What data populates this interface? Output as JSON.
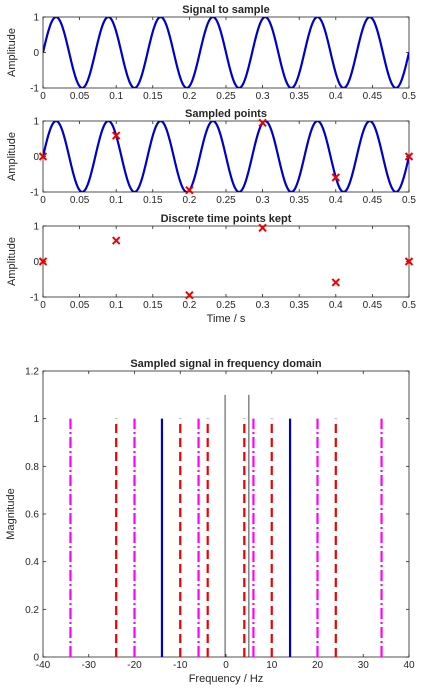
{
  "chart_data": [
    {
      "type": "line",
      "title": "Signal to sample",
      "xlabel": "",
      "ylabel": "Amplitude",
      "xlim": [
        0,
        0.5
      ],
      "ylim": [
        -1,
        1
      ],
      "xticks": [
        "0",
        "0.05",
        "0.1",
        "0.15",
        "0.2",
        "0.25",
        "0.3",
        "0.35",
        "0.4",
        "0.45",
        "0.5"
      ],
      "yticks": [
        "-1",
        "0",
        "1"
      ],
      "series": [
        {
          "frequency_hz": 14,
          "amplitude": 1,
          "color": "#0000cc"
        }
      ]
    },
    {
      "type": "line",
      "title": "Sampled points",
      "xlabel": "",
      "ylabel": "Amplitude",
      "xlim": [
        0,
        0.5
      ],
      "ylim": [
        -1,
        1
      ],
      "xticks": [
        "0",
        "0.05",
        "0.1",
        "0.15",
        "0.2",
        "0.25",
        "0.3",
        "0.35",
        "0.4",
        "0.45",
        "0.5"
      ],
      "yticks": [
        "-1",
        "0",
        "1"
      ],
      "series": [
        {
          "frequency_hz": 14,
          "amplitude": 1,
          "color": "#0000cc"
        }
      ],
      "points": {
        "x": [
          0,
          0.1,
          0.2,
          0.3,
          0.4,
          0.5
        ],
        "y": [
          0,
          0.59,
          -0.95,
          0.95,
          -0.59,
          0
        ],
        "color": "#ee0000"
      }
    },
    {
      "type": "scatter",
      "title": "Discrete time points kept",
      "xlabel": "Time / s",
      "ylabel": "Amplitude",
      "xlim": [
        0,
        0.5
      ],
      "ylim": [
        -1,
        1
      ],
      "xticks": [
        "0",
        "0.05",
        "0.1",
        "0.15",
        "0.2",
        "0.25",
        "0.3",
        "0.35",
        "0.4",
        "0.45",
        "0.5"
      ],
      "yticks": [
        "-1",
        "0",
        "1"
      ],
      "points": {
        "x": [
          0,
          0.1,
          0.2,
          0.3,
          0.4,
          0.5
        ],
        "y": [
          0,
          0.59,
          -0.95,
          0.95,
          -0.59,
          0
        ],
        "color": "#ee0000"
      }
    },
    {
      "type": "bar",
      "title": "Sampled signal in frequency domain",
      "xlabel": "Frequency / Hz",
      "ylabel": "Magnitude",
      "xlim": [
        -40,
        40
      ],
      "ylim": [
        0,
        1.2
      ],
      "xticks": [
        "-40",
        "-30",
        "-20",
        "-10",
        "0",
        "10",
        "20",
        "30",
        "40"
      ],
      "yticks": [
        "0",
        "0.2",
        "0.4",
        "0.6",
        "0.8",
        "1",
        "1.2"
      ],
      "series": [
        {
          "style": "solid",
          "color": "#0000cc",
          "x": [
            -14,
            14
          ],
          "value": 1
        },
        {
          "style": "dashed",
          "color": "#ee0000",
          "x": [
            -24,
            -10,
            -4,
            4,
            10,
            24
          ],
          "value": 1
        },
        {
          "style": "dashdot",
          "color": "#ff00ff",
          "x": [
            -34,
            -20,
            -6,
            6,
            20,
            34
          ],
          "value": 1
        },
        {
          "style": "thin",
          "color": "#333333",
          "x": [
            -0.2,
            5
          ],
          "value": 1.1
        }
      ]
    }
  ]
}
